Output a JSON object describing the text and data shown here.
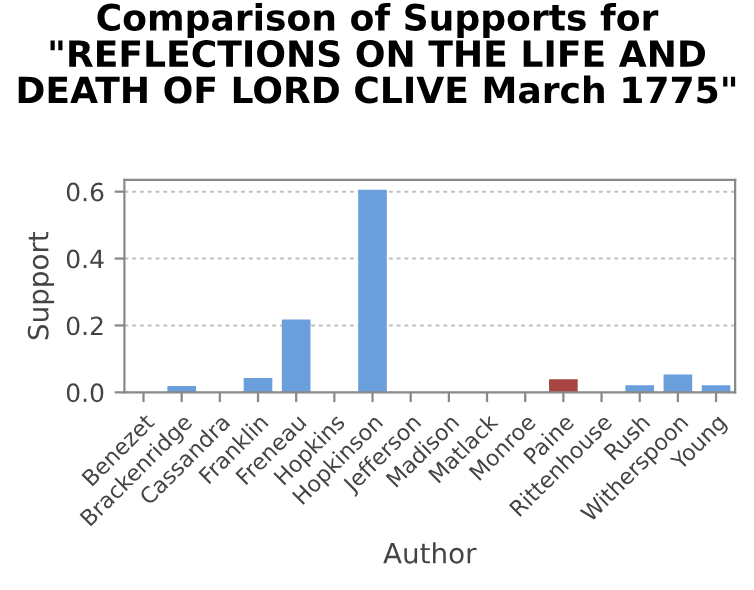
{
  "chart_data": {
    "type": "bar",
    "title": "Comparison of Supports for\n\"REFLECTIONS ON THE LIFE AND\nDEATH OF LORD CLIVE March 1775\"",
    "xlabel": "Author",
    "ylabel": "Support",
    "categories": [
      "Benezet",
      "Brackenridge",
      "Cassandra",
      "Franklin",
      "Freneau",
      "Hopkins",
      "Hopkinson",
      "Jefferson",
      "Madison",
      "Matlack",
      "Monroe",
      "Paine",
      "Rittenhouse",
      "Rush",
      "Witherspoon",
      "Young"
    ],
    "values": [
      0,
      0.019,
      0,
      0.043,
      0.218,
      0,
      0.606,
      0,
      0,
      0,
      0,
      0.039,
      0,
      0.021,
      0.053,
      0.021
    ],
    "colors": [
      "#6a9fdc",
      "#6a9fdc",
      "#6a9fdc",
      "#6a9fdc",
      "#6a9fdc",
      "#6a9fdc",
      "#6a9fdc",
      "#6a9fdc",
      "#6a9fdc",
      "#6a9fdc",
      "#6a9fdc",
      "#a84442",
      "#6a9fdc",
      "#6a9fdc",
      "#6a9fdc",
      "#6a9fdc"
    ],
    "ylim": [
      0,
      0.635
    ],
    "yticks": [
      {
        "value": 0,
        "label": "0.0"
      },
      {
        "value": 0.2,
        "label": "0.2"
      },
      {
        "value": 0.4,
        "label": "0.4"
      },
      {
        "value": 0.6,
        "label": "0.6"
      }
    ],
    "grid": "y"
  }
}
